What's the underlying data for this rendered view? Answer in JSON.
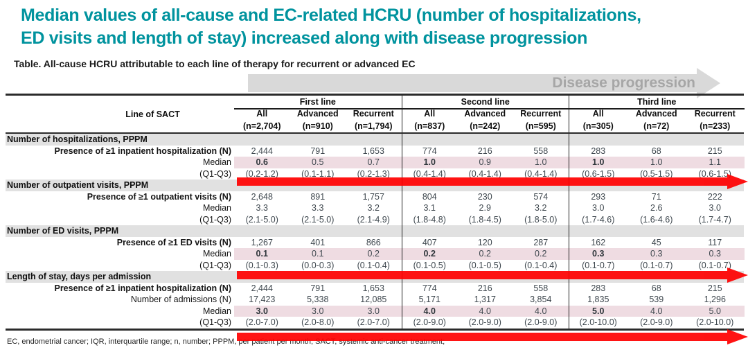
{
  "title": "Median values of all-cause and EC-related HCRU (number of hospitalizations,\nED visits and length of stay) increased along with disease progression",
  "subtitle": "Table. All-cause HCRU attributable to each line of therapy for recurrent or advanced EC",
  "banner": {
    "label": "Disease progression"
  },
  "colors": {
    "accent_teal": "#00939e",
    "arrow_red": "#ff0000",
    "median_highlight_pink": "#efdce2",
    "section_band_gray": "#e1e1e1",
    "banner_gray": "#d9d9d9",
    "banner_text_gray": "#a6a6a6"
  },
  "table": {
    "row_header": "Line of SACT",
    "groups": [
      {
        "label": "First line",
        "columns": [
          {
            "label": "All",
            "n": "(n=2,704)"
          },
          {
            "label": "Advanced",
            "n": "(n=910)"
          },
          {
            "label": "Recurrent",
            "n": "(n=1,794)"
          }
        ]
      },
      {
        "label": "Second line",
        "columns": [
          {
            "label": "All",
            "n": "(n=837)"
          },
          {
            "label": "Advanced",
            "n": "(n=242)"
          },
          {
            "label": "Recurrent",
            "n": "(n=595)"
          }
        ]
      },
      {
        "label": "Third line",
        "columns": [
          {
            "label": "All",
            "n": "(n=305)"
          },
          {
            "label": "Advanced",
            "n": "(n=72)"
          },
          {
            "label": "Recurrent",
            "n": "(n=233)"
          }
        ]
      }
    ],
    "sections": [
      {
        "header": "Number of hospitalizations, PPPM",
        "arrow_after": true,
        "rows": [
          {
            "label": "Presence of ≥1 inpatient hospitalization (N)",
            "bold_label": true,
            "values": [
              "2,444",
              "791",
              "1,653",
              "774",
              "216",
              "558",
              "283",
              "68",
              "215"
            ]
          },
          {
            "label": "Median",
            "highlight": true,
            "bold_cols": [
              0,
              3,
              6
            ],
            "values": [
              "0.6",
              "0.5",
              "0.7",
              "1.0",
              "0.9",
              "1.0",
              "1.0",
              "1.0",
              "1.1"
            ]
          },
          {
            "label": "(Q1-Q3)",
            "values": [
              "(0.2-1.2)",
              "(0.1-1.1)",
              "(0.2-1.3)",
              "(0.4-1.4)",
              "(0.4-1.4)",
              "(0.4-1.4)",
              "(0.6-1.5)",
              "(0.5-1.5)",
              "(0.6-1.5)"
            ]
          }
        ]
      },
      {
        "header": "Number of outpatient visits, PPPM",
        "arrow_after": false,
        "rows": [
          {
            "label": "Presence of ≥1 outpatient visits (N)",
            "bold_label": true,
            "values": [
              "2,648",
              "891",
              "1,757",
              "804",
              "230",
              "574",
              "293",
              "71",
              "222"
            ]
          },
          {
            "label": "Median",
            "values": [
              "3.3",
              "3.3",
              "3.2",
              "3.1",
              "2.9",
              "3.2",
              "3.0",
              "2.6",
              "3.0"
            ]
          },
          {
            "label": "(Q1-Q3)",
            "values": [
              "(2.1-5.0)",
              "(2.1-5.0)",
              "(2.1-4.9)",
              "(1.8-4.8)",
              "(1.8-4.5)",
              "(1.8-5.0)",
              "(1.7-4.6)",
              "(1.6-4.6)",
              "(1.7-4.7)"
            ]
          }
        ]
      },
      {
        "header": "Number of ED visits, PPPM",
        "arrow_after": true,
        "rows": [
          {
            "label": "Presence of ≥1 ED visits (N)",
            "bold_label": true,
            "values": [
              "1,267",
              "401",
              "866",
              "407",
              "120",
              "287",
              "162",
              "45",
              "117"
            ]
          },
          {
            "label": "Median",
            "highlight": true,
            "bold_cols": [
              0,
              3,
              6
            ],
            "values": [
              "0.1",
              "0.1",
              "0.2",
              "0.2",
              "0.2",
              "0.2",
              "0.3",
              "0.3",
              "0.3"
            ]
          },
          {
            "label": "(Q1-Q3)",
            "values": [
              "(0.1-0.3)",
              "(0.0-0.3)",
              "(0.1-0.4)",
              "(0.1-0.5)",
              "(0.1-0.5)",
              "(0.1-0.4)",
              "(0.1-0.7)",
              "(0.1-0.7)",
              "(0.1-0.7)"
            ]
          }
        ]
      },
      {
        "header": "Length of stay, days per admission",
        "arrow_after": true,
        "rows": [
          {
            "label": "Presence of ≥1 inpatient hospitalization (N)",
            "bold_label": true,
            "values": [
              "2,444",
              "791",
              "1,653",
              "774",
              "216",
              "558",
              "283",
              "68",
              "215"
            ]
          },
          {
            "label": "Number of admissions (N)",
            "values": [
              "17,423",
              "5,338",
              "12,085",
              "5,171",
              "1,317",
              "3,854",
              "1,835",
              "539",
              "1,296"
            ]
          },
          {
            "label": "Median",
            "highlight": true,
            "bold_cols": [
              0,
              3,
              6
            ],
            "values": [
              "3.0",
              "3.0",
              "3.0",
              "4.0",
              "4.0",
              "4.0",
              "5.0",
              "4.0",
              "5.0"
            ]
          },
          {
            "label": "(Q1-Q3)",
            "values": [
              "(2.0-7.0)",
              "(2.0-8.0)",
              "(2.0-7.0)",
              "(2.0-9.0)",
              "(2.0-9.0)",
              "(2.0-9.0)",
              "(2.0-10.0)",
              "(2.0-9.0)",
              "(2.0-10.0)"
            ]
          }
        ]
      }
    ]
  },
  "footnote": "EC, endometrial cancer; IQR, interquartile range; n, number; PPPM, per patient per month; SACT, systemic anti-cancer treatment;"
}
